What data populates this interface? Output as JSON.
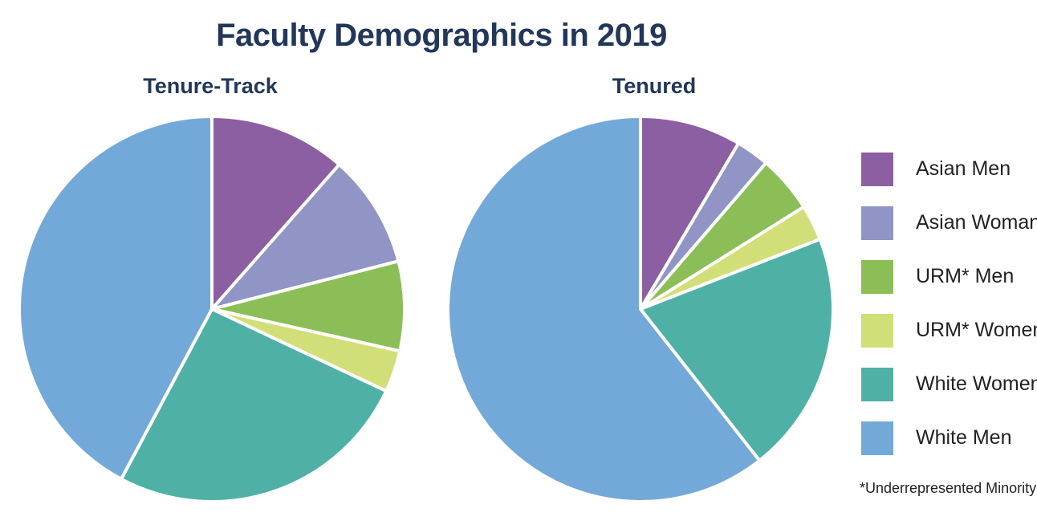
{
  "title": "Faculty Demographics in 2019",
  "footnote": "*Underrepresented Minority",
  "legend": [
    {
      "label": "Asian Men",
      "color": "#8c5ea2"
    },
    {
      "label": "Asian Woman",
      "color": "#9095c5"
    },
    {
      "label": "URM* Men",
      "color": "#8cbe57"
    },
    {
      "label": "URM* Women",
      "color": "#d2df78"
    },
    {
      "label": "White Women",
      "color": "#4fb1a6"
    },
    {
      "label": "White Men",
      "color": "#73a9d9"
    }
  ],
  "chart_data": [
    {
      "type": "pie",
      "title": "Tenure-Track",
      "labels": [
        "Asian Men",
        "Asian Woman",
        "URM* Men",
        "URM* Women",
        "White Women",
        "White Men"
      ],
      "values": [
        11.5,
        9.5,
        7.5,
        3.5,
        25.8,
        42.2
      ]
    },
    {
      "type": "pie",
      "title": "Tenured",
      "labels": [
        "Asian Men",
        "Asian Woman",
        "URM* Men",
        "URM* Women",
        "White Women",
        "White Men"
      ],
      "values": [
        8.5,
        2.8,
        4.8,
        3.0,
        20.3,
        60.6
      ]
    }
  ]
}
